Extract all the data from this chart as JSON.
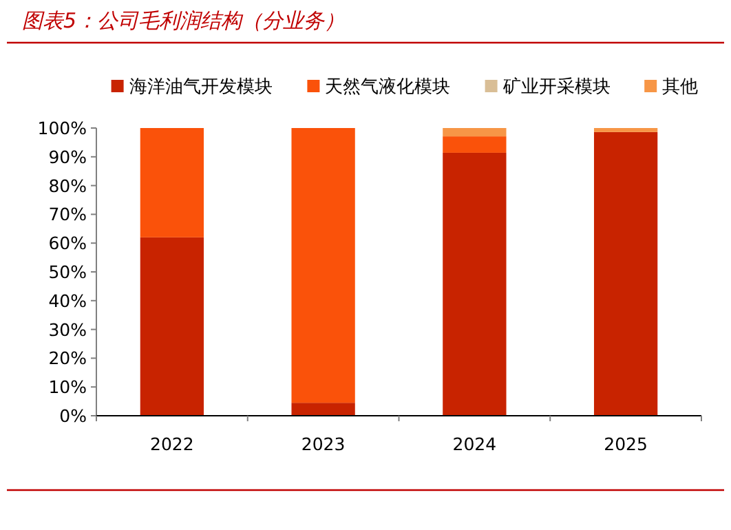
{
  "chart_data": {
    "type": "bar",
    "title": "图表5：公司毛利润结构（分业务）",
    "categories": [
      "2022",
      "2023",
      "2024",
      "2025"
    ],
    "series": [
      {
        "name": "海洋油气开发模块",
        "color": "#c82300",
        "values": [
          62,
          4.5,
          91.4,
          98.6
        ]
      },
      {
        "name": "天然气液化模块",
        "color": "#fa520a",
        "values": [
          38,
          95.5,
          5.7,
          0
        ]
      },
      {
        "name": "矿业开采模块",
        "color": "#d9be96",
        "values": [
          0,
          0,
          0,
          0
        ]
      },
      {
        "name": "其他",
        "color": "#f79646",
        "values": [
          0,
          0,
          2.9,
          1.4
        ]
      }
    ],
    "stacked": true,
    "ylim": [
      0,
      100
    ],
    "yticks": [
      {
        "value": 0,
        "label": "0%"
      },
      {
        "value": 10,
        "label": "10%"
      },
      {
        "value": 20,
        "label": "20%"
      },
      {
        "value": 30,
        "label": "30%"
      },
      {
        "value": 40,
        "label": "40%"
      },
      {
        "value": 50,
        "label": "50%"
      },
      {
        "value": 60,
        "label": "60%"
      },
      {
        "value": 70,
        "label": "70%"
      },
      {
        "value": 80,
        "label": "80%"
      },
      {
        "value": 90,
        "label": "90%"
      },
      {
        "value": 100,
        "label": "100%"
      }
    ],
    "legend": "top",
    "grid": false
  }
}
